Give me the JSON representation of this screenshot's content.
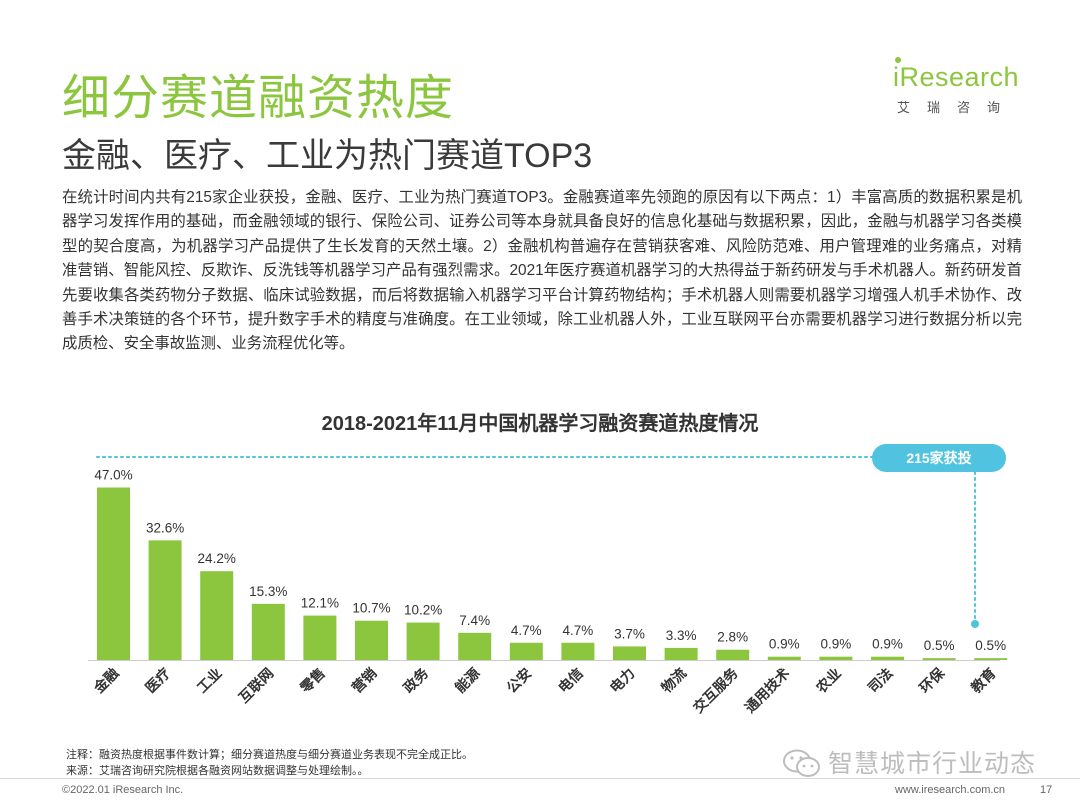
{
  "header": {
    "title": "细分赛道融资热度",
    "subtitle": "金融、医疗、工业为热门赛道TOP3"
  },
  "logo": {
    "name": "iResearch",
    "tagline": "艾瑞咨询"
  },
  "paragraph": "在统计时间内共有215家企业获投，金融、医疗、工业为热门赛道TOP3。金融赛道率先领跑的原因有以下两点：1）丰富高质的数据积累是机器学习发挥作用的基础，而金融领域的银行、保险公司、证券公司等本身就具备良好的信息化基础与数据积累，因此，金融与机器学习各类模型的契合度高，为机器学习产品提供了生长发育的天然土壤。2）金融机构普遍存在营销获客难、风险防范难、用户管理难的业务痛点，对精准营销、智能风控、反欺诈、反洗钱等机器学习产品有强烈需求。2021年医疗赛道机器学习的大热得益于新药研发与手术机器人。新药研发首先要收集各类药物分子数据、临床试验数据，而后将数据输入机器学习平台计算药物结构；手术机器人则需要机器学习增强人机手术协作、改善手术决策链的各个环节，提升数字手术的精度与准确度。在工业领域，除工业机器人外，工业互联网平台亦需要机器学习进行数据分析以完成质检、安全事故监测、业务流程优化等。",
  "chart_data": {
    "type": "bar",
    "title": "2018-2021年11月中国机器学习融资赛道热度情况",
    "categories": [
      "金融",
      "医疗",
      "工业",
      "互联网",
      "零售",
      "营销",
      "政务",
      "能源",
      "公安",
      "电信",
      "电力",
      "物流",
      "交互服务",
      "通用技术",
      "农业",
      "司法",
      "环保",
      "教育"
    ],
    "values": [
      47.0,
      32.6,
      24.2,
      15.3,
      12.1,
      10.7,
      10.2,
      7.4,
      4.7,
      4.7,
      3.7,
      3.3,
      2.8,
      0.9,
      0.9,
      0.9,
      0.5,
      0.5
    ],
    "value_labels": [
      "47.0%",
      "32.6%",
      "24.2%",
      "15.3%",
      "12.1%",
      "10.7%",
      "10.2%",
      "7.4%",
      "4.7%",
      "4.7%",
      "3.7%",
      "3.3%",
      "2.8%",
      "0.9%",
      "0.9%",
      "0.9%",
      "0.5%",
      "0.5%"
    ],
    "bar_color": "#8cc63f",
    "ylim": [
      0,
      50
    ],
    "callout": "215家获投",
    "callout_color": "#4fc3e0"
  },
  "notes": {
    "note": "注释：融资热度根据事件数计算；细分赛道热度与细分赛道业务表现不完全成正比。",
    "source": "来源：艾瑞咨询研究院根据各融资网站数据调整与处理绘制。。"
  },
  "footer": {
    "copyright": "©2022.01 iResearch Inc.",
    "website": "www.iresearch.com.cn",
    "page": "17"
  },
  "watermark": "智慧城市行业动态"
}
